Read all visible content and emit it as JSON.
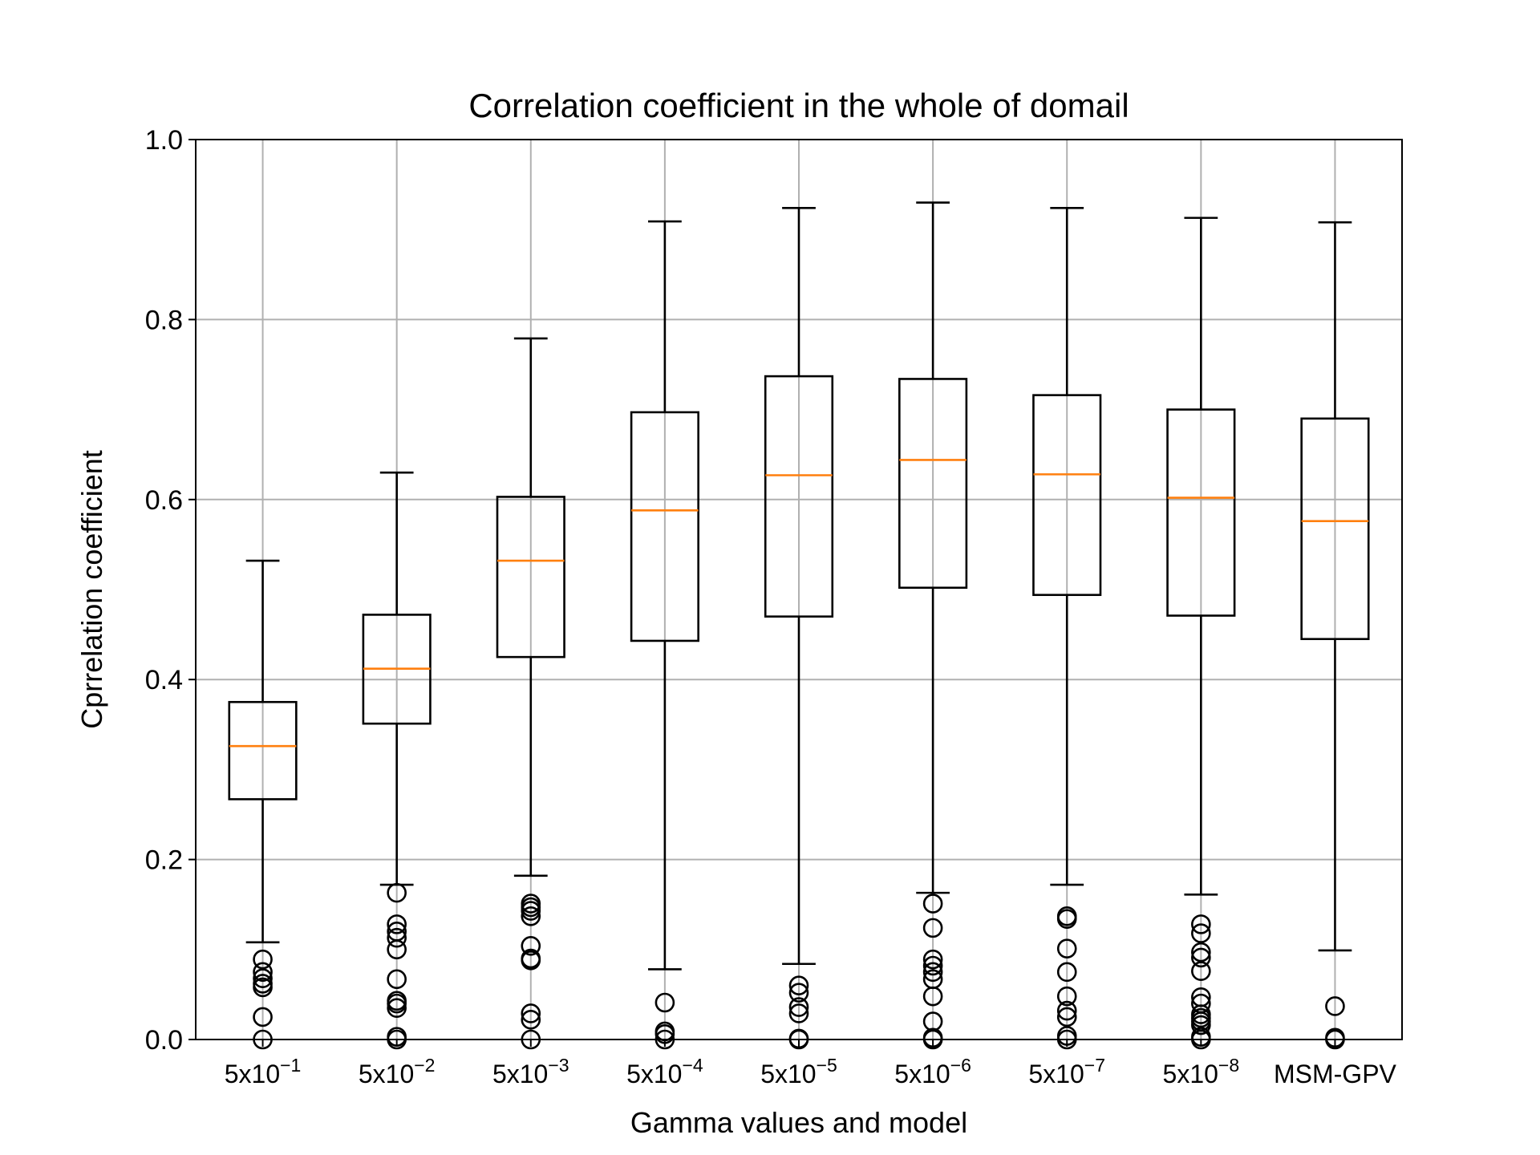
{
  "chart_data": {
    "type": "box",
    "title": "Correlation coefficient in the whole of domail",
    "xlabel": "Gamma values and model",
    "ylabel": "Cprrelation coefficient",
    "ylim": [
      0,
      1.0
    ],
    "yticks": [
      "0.0",
      "0.2",
      "0.4",
      "0.6",
      "0.8",
      "1.0"
    ],
    "grid": true,
    "colors": {
      "box": "#000000",
      "median": "#ff7f0e",
      "grid": "#b0b0b0"
    },
    "categories": [
      {
        "base": "5x10",
        "exp": "−1"
      },
      {
        "base": "5x10",
        "exp": "−2"
      },
      {
        "base": "5x10",
        "exp": "−3"
      },
      {
        "base": "5x10",
        "exp": "−4"
      },
      {
        "base": "5x10",
        "exp": "−5"
      },
      {
        "base": "5x10",
        "exp": "−6"
      },
      {
        "base": "5x10",
        "exp": "−7"
      },
      {
        "base": "5x10",
        "exp": "−8"
      },
      {
        "base": "MSM-GPV",
        "exp": ""
      }
    ],
    "boxes": [
      {
        "whisker_low": 0.108,
        "q1": 0.267,
        "median": 0.326,
        "q3": 0.375,
        "whisker_high": 0.532,
        "outliers": [
          0.089,
          0.075,
          0.068,
          0.062,
          0.058,
          0.025,
          0.0
        ]
      },
      {
        "whisker_low": 0.172,
        "q1": 0.351,
        "median": 0.412,
        "q3": 0.472,
        "whisker_high": 0.63,
        "outliers": [
          0.163,
          0.128,
          0.12,
          0.113,
          0.1,
          0.067,
          0.043,
          0.04,
          0.035,
          0.003,
          0.0
        ]
      },
      {
        "whisker_low": 0.182,
        "q1": 0.425,
        "median": 0.532,
        "q3": 0.603,
        "whisker_high": 0.779,
        "outliers": [
          0.151,
          0.147,
          0.143,
          0.137,
          0.104,
          0.09,
          0.088,
          0.029,
          0.022,
          0.0
        ]
      },
      {
        "whisker_low": 0.078,
        "q1": 0.443,
        "median": 0.588,
        "q3": 0.697,
        "whisker_high": 0.909,
        "outliers": [
          0.041,
          0.009,
          0.006,
          0.0
        ]
      },
      {
        "whisker_low": 0.084,
        "q1": 0.47,
        "median": 0.627,
        "q3": 0.737,
        "whisker_high": 0.924,
        "outliers": [
          0.06,
          0.052,
          0.036,
          0.029,
          0.001,
          0.0
        ]
      },
      {
        "whisker_low": 0.163,
        "q1": 0.502,
        "median": 0.644,
        "q3": 0.734,
        "whisker_high": 0.93,
        "outliers": [
          0.151,
          0.124,
          0.089,
          0.082,
          0.075,
          0.067,
          0.048,
          0.02,
          0.002,
          0.0
        ]
      },
      {
        "whisker_low": 0.172,
        "q1": 0.494,
        "median": 0.628,
        "q3": 0.716,
        "whisker_high": 0.924,
        "outliers": [
          0.137,
          0.134,
          0.101,
          0.075,
          0.048,
          0.032,
          0.025,
          0.004,
          0.0
        ]
      },
      {
        "whisker_low": 0.161,
        "q1": 0.471,
        "median": 0.602,
        "q3": 0.7,
        "whisker_high": 0.913,
        "outliers": [
          0.128,
          0.118,
          0.097,
          0.091,
          0.076,
          0.047,
          0.04,
          0.028,
          0.024,
          0.02,
          0.016,
          0.003,
          0.0
        ]
      },
      {
        "whisker_low": 0.099,
        "q1": 0.445,
        "median": 0.576,
        "q3": 0.69,
        "whisker_high": 0.908,
        "outliers": [
          0.037,
          0.002,
          0.0
        ]
      }
    ]
  }
}
